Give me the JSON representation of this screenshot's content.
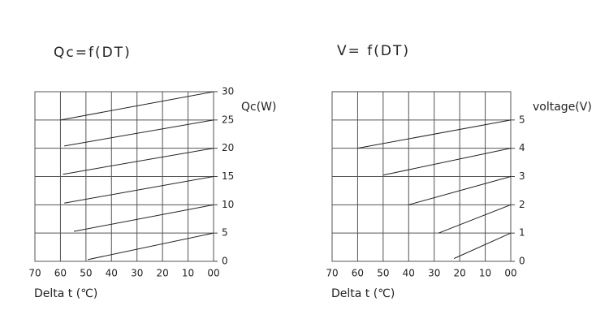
{
  "chart_data": [
    {
      "type": "line",
      "title": "Qc=f(DT)",
      "xlabel": "Delta t (℃)",
      "ylabel": "Qc(W)",
      "xlim": [
        70,
        0
      ],
      "xticks": [
        70,
        60,
        50,
        40,
        30,
        20,
        10,
        {
          "value": 0,
          "label": "00"
        }
      ],
      "ylim": [
        0,
        30
      ],
      "yticks": [
        0,
        5,
        10,
        15,
        20,
        25,
        30
      ],
      "grid": true,
      "series": [
        {
          "color": "#222222",
          "x": [
            60,
            0
          ],
          "values": [
            25,
            30
          ]
        },
        {
          "color": "#222222",
          "x": [
            58.5,
            0
          ],
          "values": [
            20.4,
            25
          ]
        },
        {
          "color": "#222222",
          "x": [
            59,
            0
          ],
          "values": [
            15.4,
            20
          ]
        },
        {
          "color": "#222222",
          "x": [
            58.5,
            0
          ],
          "values": [
            10.3,
            15
          ]
        },
        {
          "color": "#222222",
          "x": [
            54.7,
            0
          ],
          "values": [
            5.3,
            10
          ]
        },
        {
          "color": "#222222",
          "x": [
            49.3,
            0
          ],
          "values": [
            0.3,
            5
          ]
        }
      ]
    },
    {
      "type": "line",
      "title": "V=  f(DT)",
      "xlabel": "Delta t (℃)",
      "ylabel": "voltage(V)",
      "xlim": [
        70,
        0
      ],
      "xticks": [
        70,
        60,
        50,
        40,
        30,
        20,
        10,
        {
          "value": 0,
          "label": "00"
        }
      ],
      "ylim": [
        0,
        6
      ],
      "yticks": [
        0,
        1,
        2,
        3,
        4,
        5
      ],
      "grid": true,
      "series": [
        {
          "color": "#222222",
          "x": [
            60,
            0
          ],
          "values": [
            4,
            5
          ]
        },
        {
          "color": "#222222",
          "x": [
            50,
            0
          ],
          "values": [
            3.05,
            4
          ]
        },
        {
          "color": "#222222",
          "x": [
            40,
            0
          ],
          "values": [
            2,
            3
          ]
        },
        {
          "color": "#222222",
          "x": [
            28.3,
            0
          ],
          "values": [
            1,
            2
          ]
        },
        {
          "color": "#222222",
          "x": [
            22.2,
            0
          ],
          "values": [
            0.1,
            1
          ]
        }
      ]
    }
  ]
}
